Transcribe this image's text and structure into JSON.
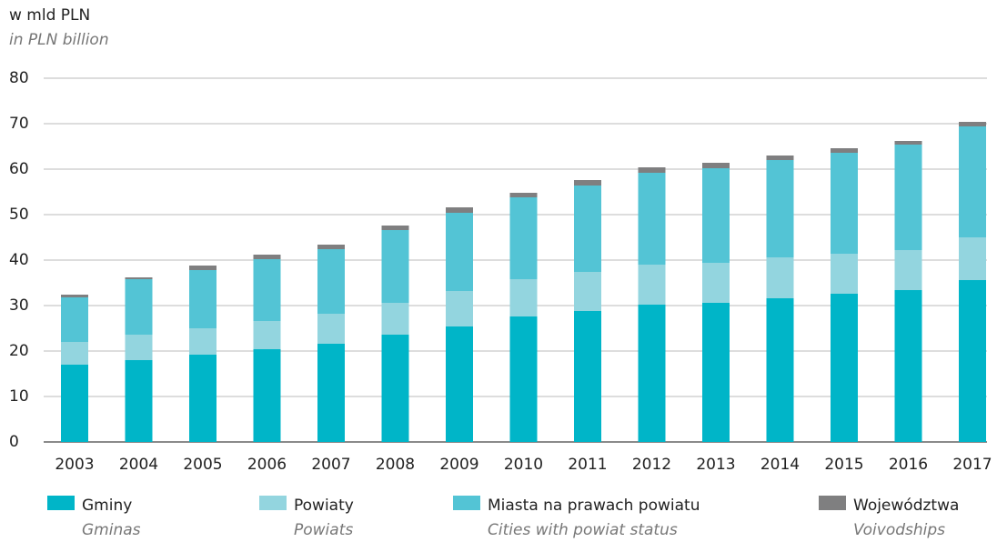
{
  "chart_data": {
    "type": "stacked_bar",
    "y_label": "w mld PLN",
    "y_label_en": "in PLN billion",
    "categories": [
      "2003",
      "2004",
      "2005",
      "2006",
      "2007",
      "2008",
      "2009",
      "2010",
      "2011",
      "2012",
      "2013",
      "2014",
      "2015",
      "2016",
      "2017"
    ],
    "series": [
      {
        "name": "Gminy",
        "subtitle": "Gminas",
        "color": "#00b5c8",
        "values": [
          17.0,
          18.0,
          19.2,
          20.4,
          21.6,
          23.6,
          25.4,
          27.6,
          28.8,
          30.2,
          30.6,
          31.6,
          32.6,
          33.4,
          35.6
        ]
      },
      {
        "name": "Powiaty",
        "subtitle": "Powiats",
        "color": "#93d5df",
        "values": [
          5.0,
          5.6,
          5.8,
          6.2,
          6.6,
          7.0,
          7.8,
          8.2,
          8.6,
          8.8,
          8.8,
          9.0,
          8.8,
          8.8,
          9.4
        ]
      },
      {
        "name": "Miasta na prawach powiatu",
        "subtitle": "Cities with powiat status",
        "color": "#53c4d5",
        "values": [
          9.8,
          12.2,
          12.8,
          13.6,
          14.2,
          16.0,
          17.2,
          18.0,
          19.0,
          20.2,
          20.8,
          21.4,
          22.2,
          23.2,
          24.4
        ]
      },
      {
        "name": "Województwa",
        "subtitle": "Voivodships",
        "color": "#7f7f80",
        "values": [
          0.6,
          0.4,
          1.0,
          1.0,
          1.0,
          1.0,
          1.2,
          1.0,
          1.2,
          1.2,
          1.2,
          1.0,
          1.0,
          0.8,
          1.0
        ]
      }
    ],
    "ylim": [
      0,
      80
    ],
    "yticks": [
      0,
      10,
      20,
      30,
      40,
      50,
      60,
      70,
      80
    ],
    "grid": true
  }
}
